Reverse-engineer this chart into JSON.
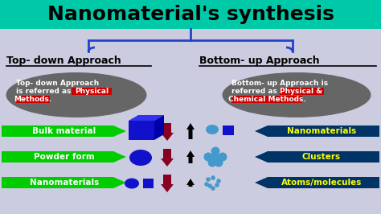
{
  "title": "Nanomaterial's synthesis",
  "teal_header_color": "#00c9a7",
  "main_bg": "#cccce0",
  "left_heading": "Top- down Approach",
  "right_heading": "Bottom- up Approach",
  "left_labels": [
    "Bulk material",
    "Powder form",
    "Nanomaterials"
  ],
  "right_labels": [
    "Nanomaterials",
    "Clusters",
    "Atoms/molecules"
  ],
  "green_color": "#00cc00",
  "dark_red_color": "#880022",
  "dark_blue_color": "#003388",
  "navy_color": "#003366",
  "white": "#ffffff",
  "black": "#000000",
  "red_highlight": "#cc0000",
  "blue_shape": "#1111cc",
  "cyan_shape": "#4499cc",
  "ellipse_gray": "#666666",
  "yellow": "#ffff00",
  "brace_color": "#2244cc",
  "title_fontsize": 18,
  "heading_fontsize": 9,
  "label_fontsize": 7.5,
  "desc_fontsize": 6.5
}
